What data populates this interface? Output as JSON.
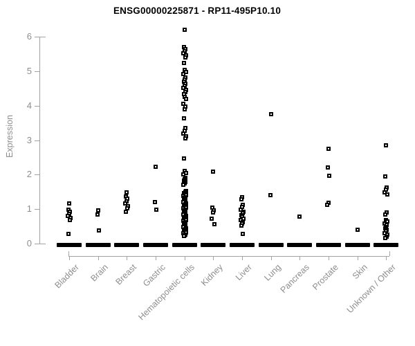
{
  "chart_data": {
    "type": "scatter",
    "subtype": "strip-plot",
    "title": "ENSG00000225871 - RP11-495P10.10",
    "ylabel": "Expression",
    "xlabel": "",
    "ylim": [
      0,
      6
    ],
    "yticks": [
      0,
      1,
      2,
      3,
      4,
      5,
      6
    ],
    "grid": false,
    "legend": "none",
    "marker": "open-square",
    "colors": {
      "marker": "#000000",
      "axis": "#a3a3a3",
      "tick_label": "#8e8e8e",
      "title": "#000000",
      "background": "#ffffff"
    },
    "categories": [
      "Bladder",
      "Brain",
      "Breast",
      "Gastric",
      "Hematopoietic cells",
      "Kidney",
      "Liver",
      "Lung",
      "Pancreas",
      "Prostate",
      "Skin",
      "Unknown / Other"
    ],
    "series": [
      {
        "name": "Bladder",
        "zero_cluster": true,
        "values": [
          1.16,
          0.99,
          0.93,
          0.87,
          0.8,
          0.74,
          0.69,
          0.29
        ]
      },
      {
        "name": "Brain",
        "zero_cluster": true,
        "values": [
          0.96,
          0.84,
          0.39
        ]
      },
      {
        "name": "Breast",
        "zero_cluster": true,
        "values": [
          1.49,
          1.37,
          1.3,
          1.23,
          1.16,
          1.09,
          1.02,
          0.92
        ]
      },
      {
        "name": "Gastric",
        "zero_cluster": true,
        "values": [
          2.22,
          1.2,
          0.98
        ]
      },
      {
        "name": "Hematopoietic cells",
        "zero_cluster": true,
        "values": [
          6.21,
          5.7,
          5.64,
          5.58,
          5.52,
          5.46,
          5.4,
          5.24,
          5.04,
          4.98,
          4.92,
          4.82,
          4.76,
          4.7,
          4.64,
          4.58,
          4.52,
          4.46,
          4.4,
          4.33,
          4.26,
          4.2,
          4.05,
          3.97,
          3.89,
          3.63,
          3.35,
          3.28,
          3.2,
          3.12,
          3.05,
          2.47,
          2.11,
          2.05,
          2.01,
          1.91,
          1.87,
          1.83,
          1.79,
          1.75,
          1.71,
          1.53,
          1.5,
          1.47,
          1.44,
          1.41,
          1.38,
          1.35,
          1.32,
          1.29,
          1.26,
          1.23,
          1.2,
          1.17,
          1.14,
          1.11,
          1.08,
          1.05,
          1.02,
          0.99,
          0.96,
          0.93,
          0.9,
          0.87,
          0.84,
          0.81,
          0.78,
          0.75,
          0.72,
          0.69,
          0.66,
          0.63,
          0.6,
          0.57,
          0.54,
          0.51,
          0.48,
          0.45,
          0.42,
          0.39,
          0.36,
          0.33,
          0.3,
          0.27,
          0.24,
          0.22
        ]
      },
      {
        "name": "Kidney",
        "zero_cluster": true,
        "values": [
          2.08,
          1.04,
          0.97,
          0.91,
          0.72,
          0.57
        ]
      },
      {
        "name": "Liver",
        "zero_cluster": true,
        "values": [
          1.34,
          1.28,
          1.13,
          1.07,
          0.98,
          0.93,
          0.88,
          0.83,
          0.78,
          0.73,
          0.68,
          0.63,
          0.58,
          0.53,
          0.28
        ]
      },
      {
        "name": "Lung",
        "zero_cluster": true,
        "values": [
          3.76,
          1.4
        ]
      },
      {
        "name": "Pancreas",
        "zero_cluster": true,
        "values": [
          0.78
        ]
      },
      {
        "name": "Prostate",
        "zero_cluster": true,
        "values": [
          2.75,
          2.21,
          1.97,
          1.18,
          1.12
        ]
      },
      {
        "name": "Skin",
        "zero_cluster": true,
        "values": [
          0.4
        ]
      },
      {
        "name": "Unknown / Other",
        "zero_cluster": true,
        "values": [
          2.84,
          1.94,
          1.63,
          1.56,
          1.49,
          1.42,
          0.91,
          0.85,
          0.69,
          0.64,
          0.59,
          0.54,
          0.49,
          0.44,
          0.4,
          0.36,
          0.31,
          0.26,
          0.21,
          0.16
        ]
      }
    ]
  }
}
